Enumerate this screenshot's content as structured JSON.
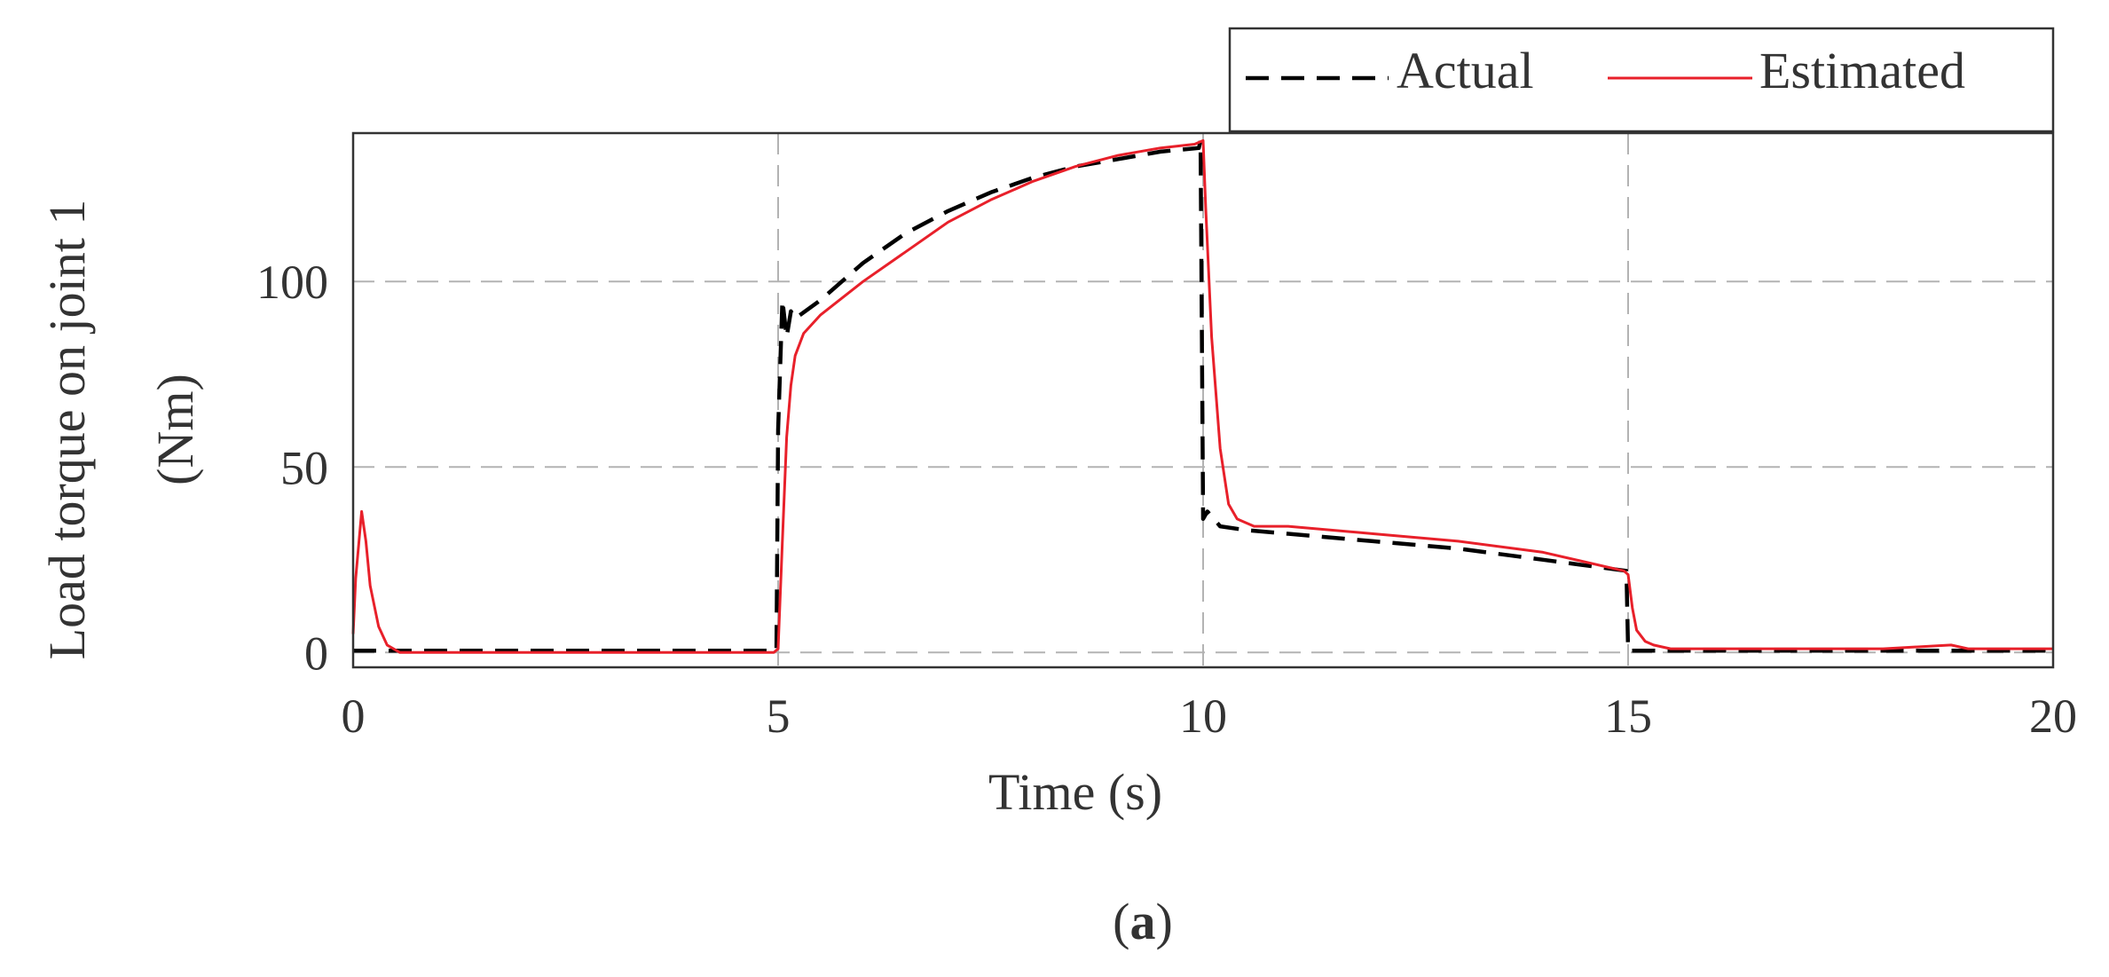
{
  "chart_data": {
    "type": "line",
    "panel_label": {
      "open": "(",
      "letter": "a",
      "close": ")"
    },
    "xlabel": "Time (s)",
    "ylabel": [
      "Load torque on joint 1",
      "(Nm)"
    ],
    "xlim": [
      0,
      20
    ],
    "ylim": [
      -4,
      140
    ],
    "xticks": [
      0,
      5,
      10,
      15,
      20
    ],
    "yticks": [
      0,
      50,
      100
    ],
    "grid": true,
    "legend": {
      "placement": "above-top-right",
      "entries": [
        "Actual",
        "Estimated"
      ]
    },
    "series": [
      {
        "name": "Actual",
        "color": "#000000",
        "style": "dashed",
        "x": [
          0,
          4.98,
          5.0,
          5.05,
          5.1,
          5.15,
          5.2,
          5.5,
          6,
          6.5,
          7,
          7.5,
          8,
          8.5,
          9,
          9.5,
          9.95,
          9.97,
          10.0,
          10.05,
          10.2,
          10.5,
          11,
          12,
          13,
          14,
          14.98,
          15.0,
          15.5,
          16,
          17,
          18,
          19,
          20
        ],
        "values": [
          0.5,
          0.5,
          60,
          95,
          85,
          92,
          90,
          95,
          105,
          113,
          119,
          124,
          128,
          131,
          133,
          135,
          136,
          138,
          36,
          38,
          34,
          33,
          32,
          30,
          28,
          25,
          22,
          0.5,
          0.5,
          0.5,
          0.5,
          0.5,
          0.5,
          0.5
        ]
      },
      {
        "name": "Estimated",
        "color": "#e8202a",
        "style": "solid",
        "x": [
          0,
          0.03,
          0.1,
          0.15,
          0.2,
          0.3,
          0.4,
          0.55,
          0.7,
          1,
          2,
          3,
          4,
          4.95,
          5.0,
          5.05,
          5.1,
          5.15,
          5.2,
          5.3,
          5.5,
          6,
          6.5,
          7,
          7.5,
          8,
          8.5,
          9,
          9.5,
          9.9,
          10.0,
          10.03,
          10.1,
          10.2,
          10.3,
          10.4,
          10.6,
          11,
          12,
          13,
          14,
          14.95,
          15.0,
          15.05,
          15.1,
          15.2,
          15.3,
          15.5,
          16,
          17,
          18,
          18.8,
          19,
          20
        ],
        "values": [
          5,
          20,
          38,
          30,
          18,
          7,
          2,
          0,
          0,
          0,
          0,
          0,
          0,
          0,
          1,
          30,
          58,
          72,
          80,
          86,
          91,
          100,
          108,
          116,
          122,
          127,
          131,
          134,
          136,
          137,
          138,
          120,
          85,
          55,
          40,
          36,
          34,
          34,
          32,
          30,
          27,
          22,
          21,
          12,
          6,
          3,
          2,
          1,
          1,
          1,
          1,
          2,
          1,
          1
        ]
      }
    ]
  }
}
